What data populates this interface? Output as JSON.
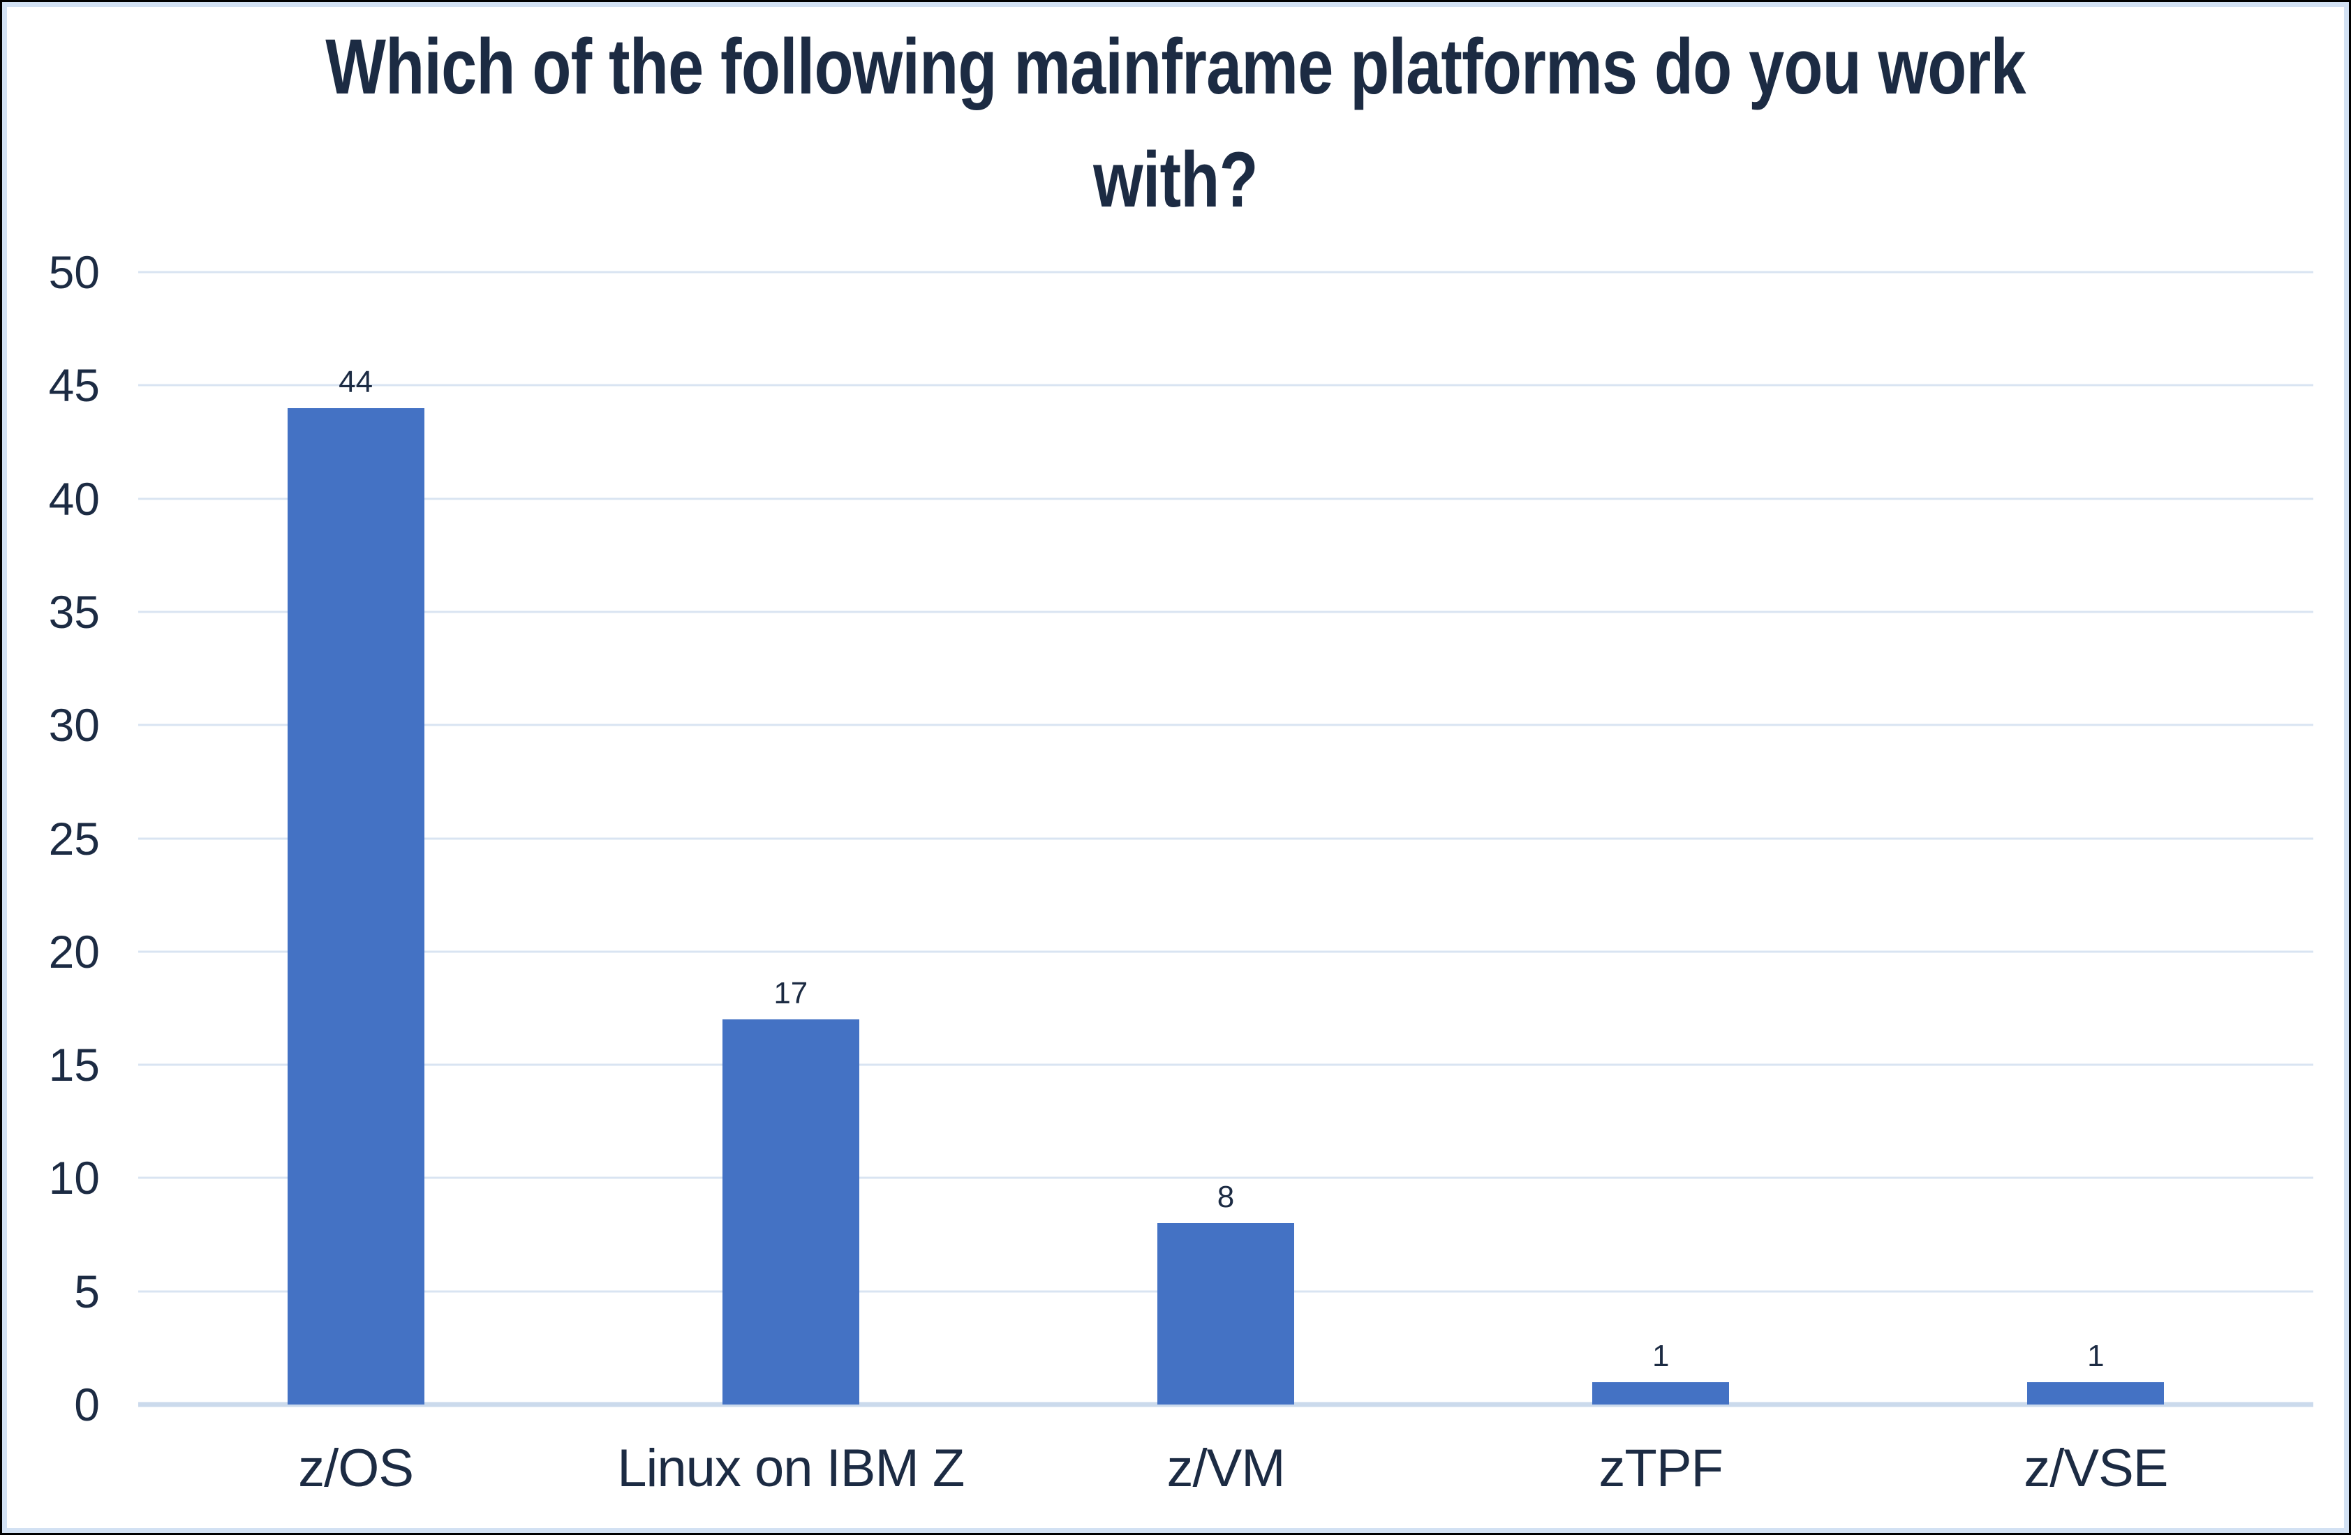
{
  "chart_data": {
    "type": "bar",
    "title": "Which of the following mainframe platforms do you work with?",
    "categories": [
      "z/OS",
      "Linux on IBM Z",
      "z/VM",
      "zTPF",
      "z/VSE"
    ],
    "values": [
      44,
      17,
      8,
      1,
      1
    ],
    "data_labels": [
      "44",
      "17",
      "8",
      "1",
      "1"
    ],
    "xlabel": "",
    "ylabel": "",
    "ylim": [
      0,
      50
    ],
    "ytick_step": 5,
    "ytick_labels": [
      "0",
      "5",
      "10",
      "15",
      "20",
      "25",
      "30",
      "35",
      "40",
      "45",
      "50"
    ],
    "grid": "horizontal",
    "legend_position": "none",
    "colors": {
      "bar_fill": "#4472C4",
      "text": "#1C2B43",
      "gridline": "#D9E4F2",
      "axis_line": "#CBDAEC",
      "inner_border": "#D2E1F3",
      "outer_border": "#000000",
      "background": "#FFFFFF"
    }
  }
}
